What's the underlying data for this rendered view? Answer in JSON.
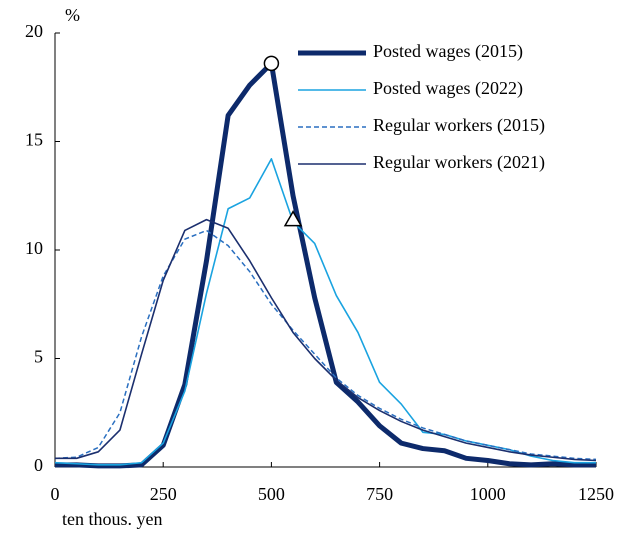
{
  "chart_data": {
    "type": "line",
    "y_unit_label": "%",
    "x_label": "ten thous. yen",
    "x": [
      0,
      50,
      100,
      150,
      200,
      250,
      300,
      350,
      400,
      450,
      500,
      550,
      600,
      650,
      700,
      750,
      800,
      850,
      900,
      950,
      1000,
      1050,
      1100,
      1150,
      1200,
      1250
    ],
    "xlim": [
      0,
      1250
    ],
    "xticks": [
      0,
      250,
      500,
      750,
      1000,
      1250
    ],
    "ylim": [
      0,
      20
    ],
    "yticks": [
      0,
      5,
      10,
      15,
      20
    ],
    "series": [
      {
        "name": "Posted wages (2015)",
        "color": "#0d2a6b",
        "style": "thick",
        "values": [
          0.1,
          0.1,
          0.05,
          0.05,
          0.1,
          1.0,
          3.8,
          9.5,
          16.2,
          17.6,
          18.6,
          12.5,
          7.8,
          3.9,
          3.0,
          1.9,
          1.1,
          0.85,
          0.75,
          0.4,
          0.3,
          0.15,
          0.1,
          0.15,
          0.1,
          0.1
        ]
      },
      {
        "name": "Posted wages (2022)",
        "color": "#1aa3e0",
        "style": "solid",
        "values": [
          0.2,
          0.15,
          0.1,
          0.1,
          0.2,
          1.1,
          3.5,
          8.0,
          11.9,
          12.4,
          14.2,
          11.3,
          10.3,
          7.9,
          6.2,
          3.9,
          2.9,
          1.6,
          1.5,
          1.2,
          1.0,
          0.8,
          0.5,
          0.3,
          0.2,
          0.2
        ]
      },
      {
        "name": "Regular workers (2015)",
        "color": "#2a6fc0",
        "style": "dashed",
        "values": [
          0.4,
          0.45,
          0.9,
          2.5,
          6.0,
          8.8,
          10.5,
          10.9,
          10.2,
          9.0,
          7.5,
          6.3,
          5.2,
          4.1,
          3.3,
          2.7,
          2.2,
          1.8,
          1.5,
          1.2,
          1.0,
          0.8,
          0.6,
          0.5,
          0.4,
          0.35
        ]
      },
      {
        "name": "Regular workers (2021)",
        "color": "#1b2f6e",
        "style": "solid",
        "values": [
          0.4,
          0.4,
          0.7,
          1.7,
          5.2,
          8.6,
          10.9,
          11.4,
          11.0,
          9.5,
          7.8,
          6.2,
          5.0,
          4.0,
          3.2,
          2.6,
          2.1,
          1.7,
          1.4,
          1.1,
          0.9,
          0.7,
          0.55,
          0.45,
          0.35,
          0.3
        ]
      }
    ],
    "markers": [
      {
        "x": 500,
        "y": 18.6,
        "shape": "circle"
      },
      {
        "x": 550,
        "y": 11.4,
        "shape": "triangle"
      }
    ]
  }
}
